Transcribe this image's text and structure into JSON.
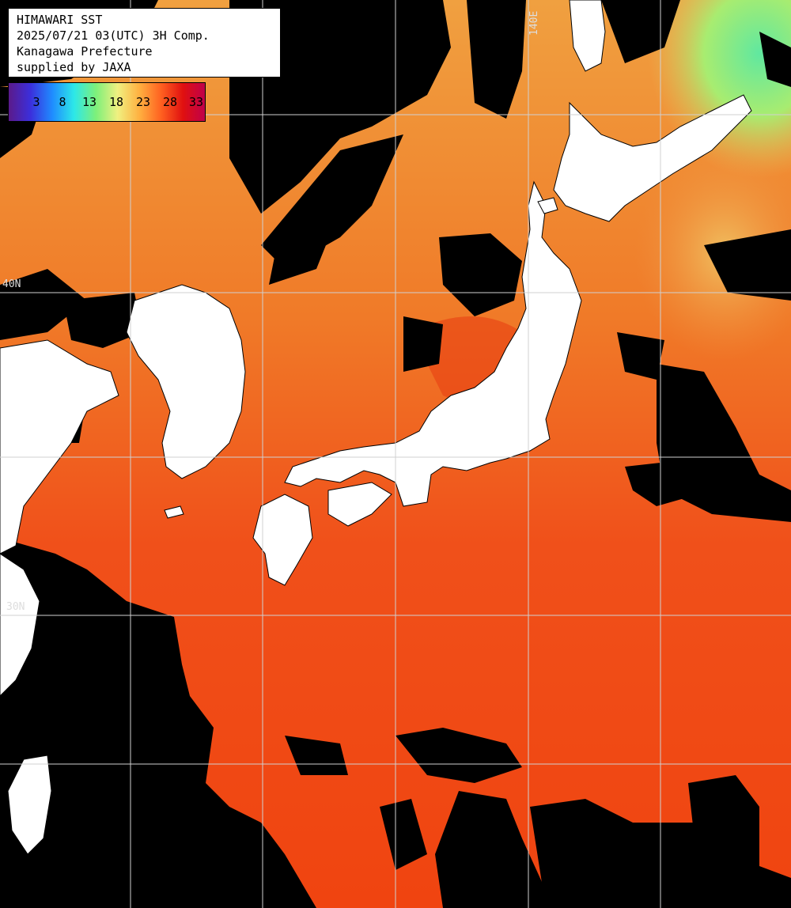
{
  "header": {
    "title": "HIMAWARI SST",
    "datetime": "2025/07/21 03(UTC) 3H Comp.",
    "region": "Kanagawa Prefecture",
    "credit": "supplied by JAXA"
  },
  "legend": {
    "ticks": [
      "3",
      "8",
      "13",
      "18",
      "23",
      "28",
      "33"
    ],
    "colors": [
      "#5b1a8a",
      "#3b2fdc",
      "#1f8cff",
      "#2de8e8",
      "#7df07a",
      "#f0f080",
      "#ffb040",
      "#ff6020",
      "#e01010",
      "#c0004a"
    ]
  },
  "grid_labels": {
    "lon_140": "140E",
    "lat_40": "40N",
    "lat_30": "30N"
  },
  "colors": {
    "land": "#ffffff",
    "no_data": "#000000",
    "grid": "#cfcfcf",
    "sea_warm": "#f04a10",
    "sea_mid": "#f08a30",
    "sea_cool": "#e8d070",
    "sea_cold": "#70e890"
  }
}
